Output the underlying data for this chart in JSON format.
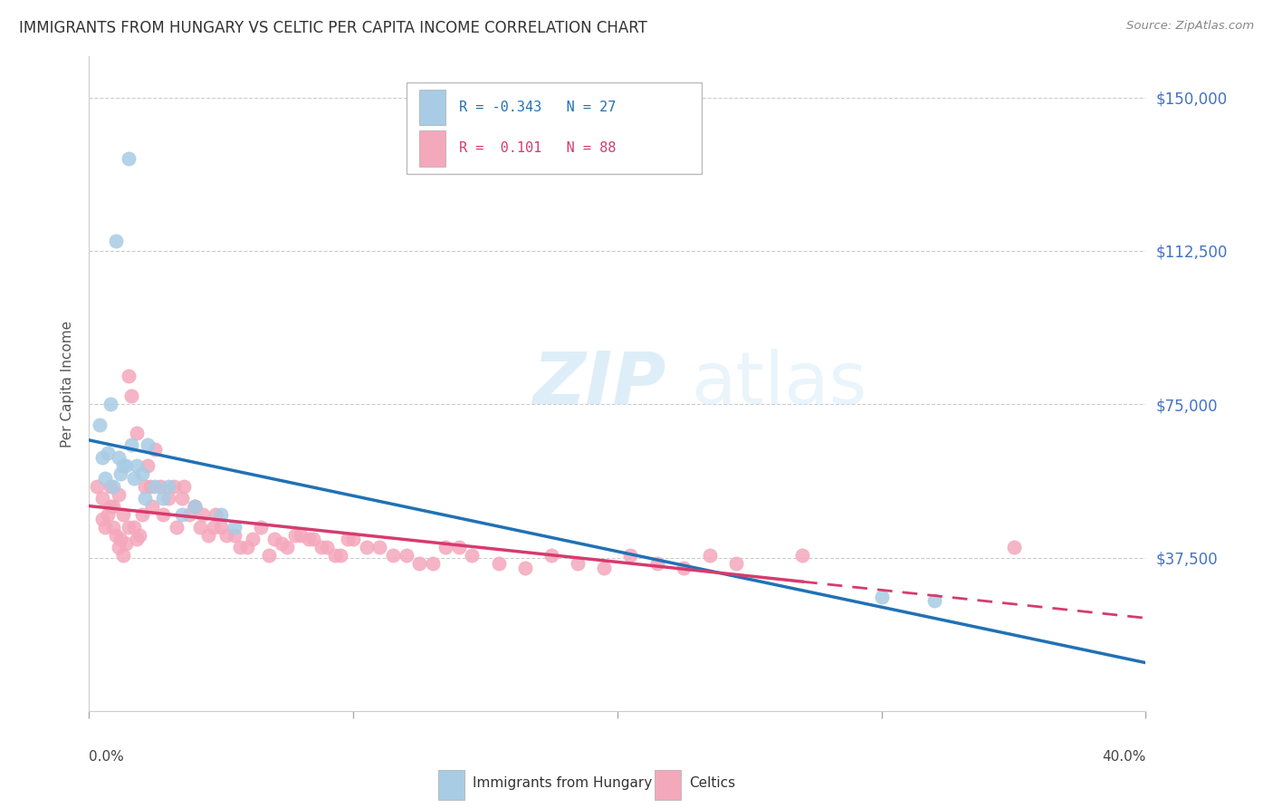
{
  "title": "IMMIGRANTS FROM HUNGARY VS CELTIC PER CAPITA INCOME CORRELATION CHART",
  "source": "Source: ZipAtlas.com",
  "ylabel": "Per Capita Income",
  "legend_label1": "Immigrants from Hungary",
  "legend_label2": "Celtics",
  "watermark_zip": "ZIP",
  "watermark_atlas": "atlas",
  "color_blue": "#a8cce4",
  "color_pink": "#f4a8bc",
  "color_line_blue": "#2171b5",
  "color_line_pink": "#d63b6e",
  "ytick_labels": [
    "$37,500",
    "$75,000",
    "$112,500",
    "$150,000"
  ],
  "ytick_values": [
    37500,
    75000,
    112500,
    150000
  ],
  "ymax": 160000,
  "ymin": 0,
  "xmin": 0.0,
  "xmax": 0.4,
  "blue_points_x": [
    0.005,
    0.01,
    0.015,
    0.008,
    0.018,
    0.022,
    0.012,
    0.009,
    0.014,
    0.007,
    0.006,
    0.011,
    0.016,
    0.02,
    0.025,
    0.028,
    0.03,
    0.035,
    0.04,
    0.05,
    0.055,
    0.3,
    0.32,
    0.004,
    0.013,
    0.017,
    0.021
  ],
  "blue_points_y": [
    62000,
    115000,
    135000,
    75000,
    60000,
    65000,
    58000,
    55000,
    60000,
    63000,
    57000,
    62000,
    65000,
    58000,
    55000,
    52000,
    55000,
    48000,
    50000,
    48000,
    45000,
    28000,
    27000,
    70000,
    60000,
    57000,
    52000
  ],
  "pink_points_x": [
    0.003,
    0.005,
    0.007,
    0.008,
    0.009,
    0.01,
    0.011,
    0.012,
    0.013,
    0.014,
    0.015,
    0.016,
    0.017,
    0.018,
    0.019,
    0.02,
    0.022,
    0.023,
    0.025,
    0.027,
    0.03,
    0.032,
    0.035,
    0.038,
    0.04,
    0.042,
    0.045,
    0.048,
    0.05,
    0.055,
    0.06,
    0.065,
    0.07,
    0.075,
    0.08,
    0.085,
    0.09,
    0.095,
    0.1,
    0.11,
    0.12,
    0.13,
    0.14,
    0.005,
    0.006,
    0.008,
    0.009,
    0.011,
    0.013,
    0.015,
    0.018,
    0.021,
    0.024,
    0.028,
    0.033,
    0.036,
    0.04,
    0.043,
    0.047,
    0.052,
    0.057,
    0.062,
    0.068,
    0.073,
    0.078,
    0.083,
    0.088,
    0.093,
    0.098,
    0.105,
    0.115,
    0.125,
    0.135,
    0.145,
    0.155,
    0.165,
    0.175,
    0.185,
    0.195,
    0.205,
    0.215,
    0.225,
    0.235,
    0.245,
    0.27,
    0.35
  ],
  "pink_points_y": [
    55000,
    52000,
    48000,
    50000,
    45000,
    43000,
    40000,
    42000,
    38000,
    41000,
    82000,
    77000,
    45000,
    68000,
    43000,
    48000,
    60000,
    55000,
    64000,
    55000,
    52000,
    55000,
    52000,
    48000,
    50000,
    45000,
    43000,
    48000,
    45000,
    43000,
    40000,
    45000,
    42000,
    40000,
    43000,
    42000,
    40000,
    38000,
    42000,
    40000,
    38000,
    36000,
    40000,
    47000,
    45000,
    55000,
    50000,
    53000,
    48000,
    45000,
    42000,
    55000,
    50000,
    48000,
    45000,
    55000,
    50000,
    48000,
    45000,
    43000,
    40000,
    42000,
    38000,
    41000,
    43000,
    42000,
    40000,
    38000,
    42000,
    40000,
    38000,
    36000,
    40000,
    38000,
    36000,
    35000,
    38000,
    36000,
    35000,
    38000,
    36000,
    35000,
    38000,
    36000,
    38000,
    40000
  ]
}
